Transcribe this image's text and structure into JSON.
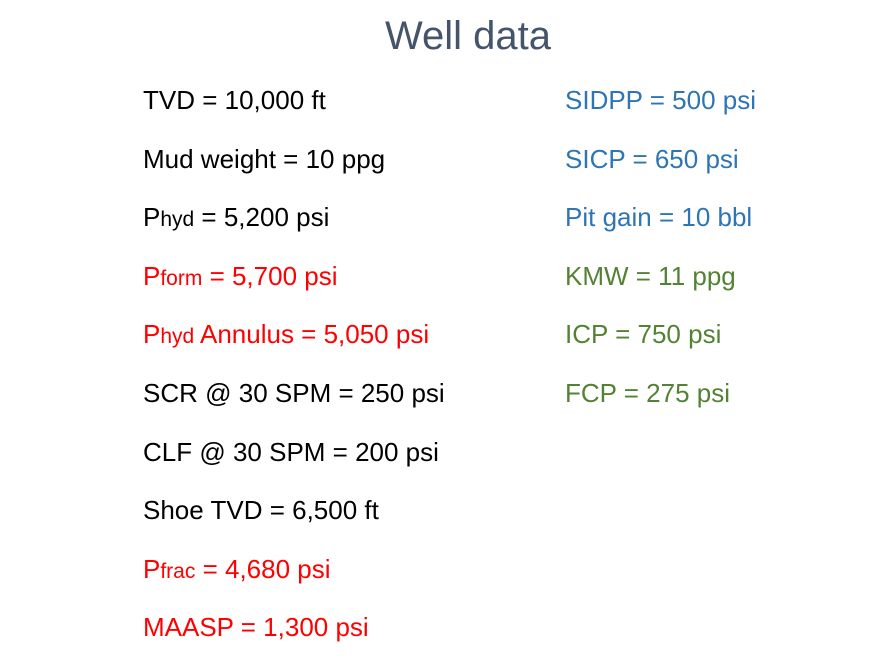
{
  "title": "Well data",
  "colors": {
    "black": "#000000",
    "red": "#ff0000",
    "blue": "#2e75b6",
    "green": "#548235",
    "title": "#44546a"
  },
  "left": [
    {
      "text": "TVD = 10,000 ft",
      "color": "black"
    },
    {
      "text": "Mud weight = 10 ppg",
      "color": "black"
    },
    {
      "prefix": "P",
      "sub": "hyd",
      "text": " = 5,200 psi",
      "color": "black"
    },
    {
      "prefix": "P",
      "sub": "form",
      "text": " = 5,700 psi",
      "color": "red"
    },
    {
      "prefix": "P",
      "sub": "hyd",
      "text": " Annulus = 5,050 psi",
      "color": "red"
    },
    {
      "text": "SCR @ 30 SPM = 250 psi",
      "color": "black"
    },
    {
      "text": "CLF @ 30 SPM = 200 psi",
      "color": "black"
    },
    {
      "text": "Shoe TVD = 6,500 ft",
      "color": "black"
    },
    {
      "prefix": "P",
      "sub": "frac",
      "text": " = 4,680 psi",
      "color": "red"
    },
    {
      "text": "MAASP = 1,300 psi",
      "color": "red"
    }
  ],
  "right": [
    {
      "text": "SIDPP = 500 psi",
      "color": "blue"
    },
    {
      "text": "SICP = 650 psi",
      "color": "blue"
    },
    {
      "text": "Pit gain = 10 bbl",
      "color": "blue"
    },
    {
      "text": "KMW = 11 ppg",
      "color": "green"
    },
    {
      "text": "ICP = 750 psi",
      "color": "green"
    },
    {
      "text": "FCP = 275 psi",
      "color": "green"
    }
  ]
}
